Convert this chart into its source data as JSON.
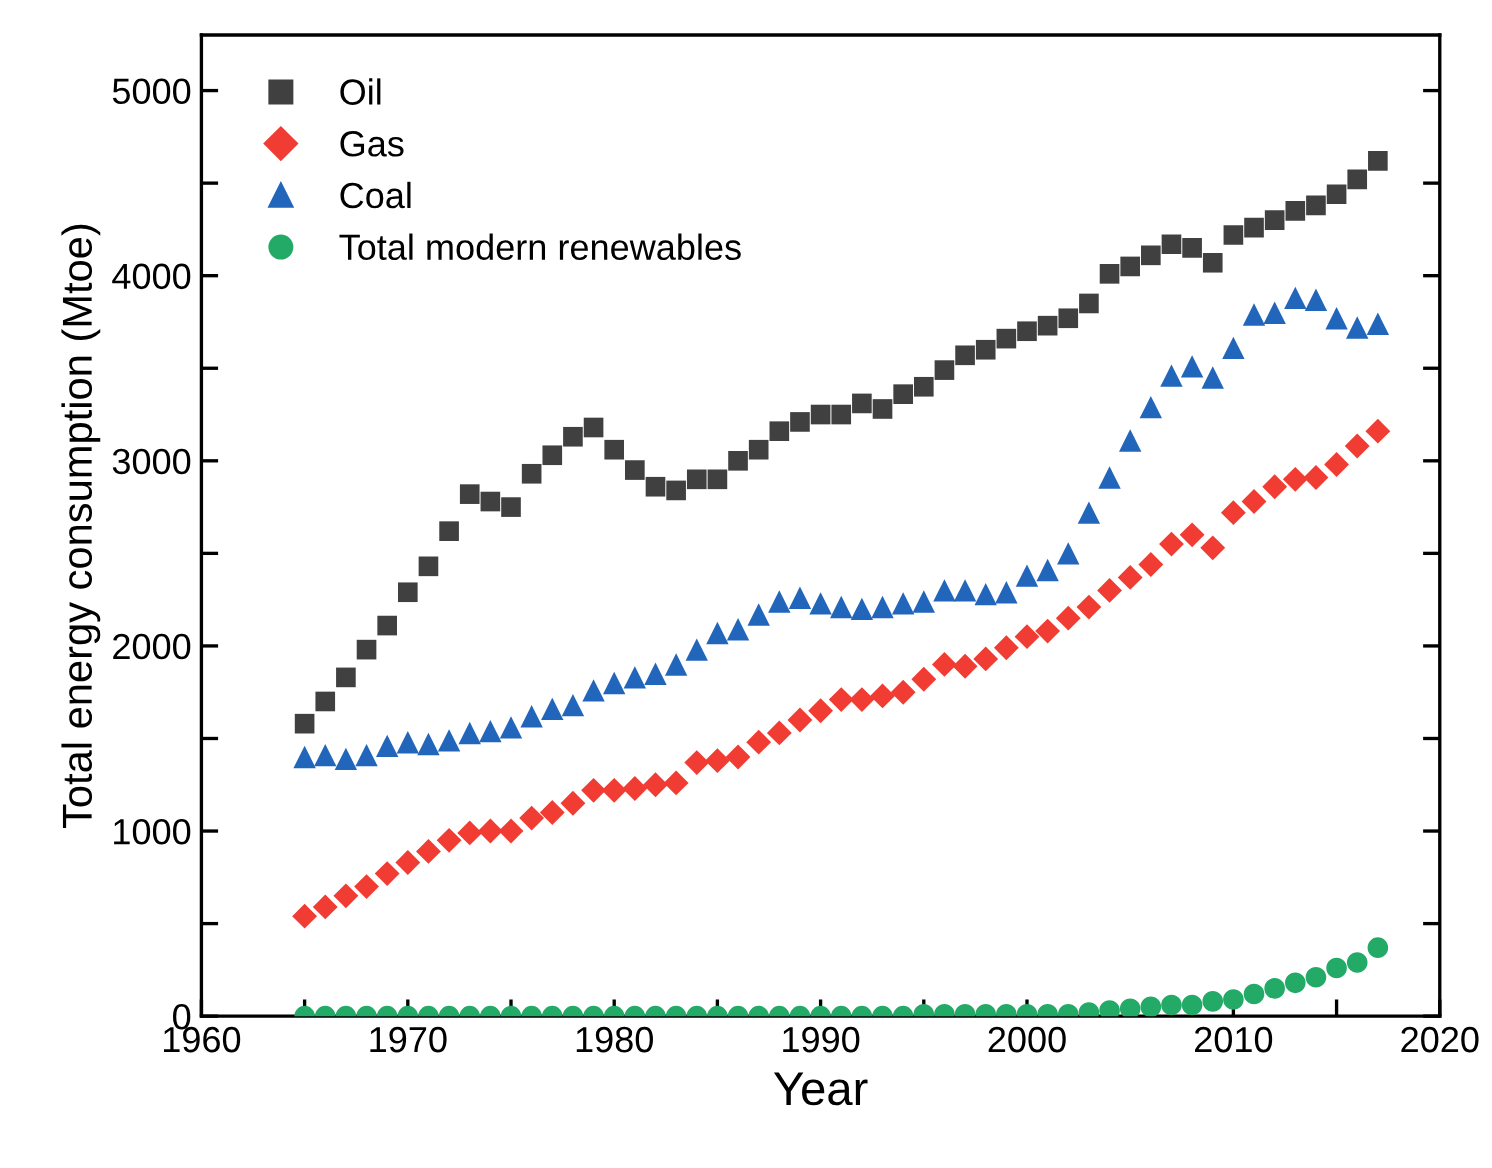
{
  "chart_data": {
    "type": "scatter",
    "xlabel": "Year",
    "ylabel": "Total energy consumption (Mtoe)",
    "x": [
      1965,
      1966,
      1967,
      1968,
      1969,
      1970,
      1971,
      1972,
      1973,
      1974,
      1975,
      1976,
      1977,
      1978,
      1979,
      1980,
      1981,
      1982,
      1983,
      1984,
      1985,
      1986,
      1987,
      1988,
      1989,
      1990,
      1991,
      1992,
      1993,
      1994,
      1995,
      1996,
      1997,
      1998,
      1999,
      2000,
      2001,
      2002,
      2003,
      2004,
      2005,
      2006,
      2007,
      2008,
      2009,
      2010,
      2011,
      2012,
      2013,
      2014,
      2015,
      2016,
      2017
    ],
    "series": [
      {
        "name": "Oil",
        "color": "#404040",
        "marker": "square",
        "values": [
          1580,
          1700,
          1830,
          1980,
          2110,
          2290,
          2430,
          2620,
          2820,
          2780,
          2750,
          2930,
          3030,
          3130,
          3180,
          3060,
          2950,
          2860,
          2840,
          2900,
          2900,
          3000,
          3060,
          3160,
          3210,
          3250,
          3250,
          3310,
          3280,
          3360,
          3400,
          3490,
          3570,
          3600,
          3660,
          3700,
          3730,
          3770,
          3850,
          4010,
          4050,
          4110,
          4170,
          4150,
          4070,
          4220,
          4260,
          4300,
          4350,
          4380,
          4440,
          4520,
          4620
        ]
      },
      {
        "name": "Gas",
        "color": "#f03c32",
        "marker": "diamond",
        "values": [
          540,
          590,
          650,
          700,
          770,
          830,
          890,
          950,
          990,
          1000,
          1000,
          1070,
          1100,
          1150,
          1220,
          1220,
          1230,
          1250,
          1260,
          1370,
          1380,
          1400,
          1480,
          1530,
          1600,
          1650,
          1710,
          1710,
          1730,
          1750,
          1820,
          1900,
          1890,
          1930,
          1990,
          2050,
          2080,
          2150,
          2210,
          2300,
          2370,
          2440,
          2550,
          2600,
          2530,
          2720,
          2780,
          2860,
          2900,
          2910,
          2980,
          3080,
          3160
        ]
      },
      {
        "name": "Coal",
        "color": "#2266bb",
        "marker": "triangle",
        "values": [
          1400,
          1410,
          1390,
          1410,
          1460,
          1480,
          1470,
          1490,
          1530,
          1540,
          1560,
          1620,
          1660,
          1680,
          1760,
          1800,
          1830,
          1850,
          1900,
          1980,
          2070,
          2090,
          2170,
          2240,
          2260,
          2230,
          2210,
          2200,
          2210,
          2230,
          2240,
          2300,
          2300,
          2280,
          2290,
          2380,
          2410,
          2500,
          2720,
          2910,
          3110,
          3290,
          3460,
          3510,
          3450,
          3610,
          3790,
          3800,
          3880,
          3870,
          3770,
          3720,
          3740
        ]
      },
      {
        "name": "Total modern renewables",
        "color": "#22aa66",
        "marker": "circle",
        "values": [
          0,
          0,
          0,
          0,
          0,
          0,
          0,
          0,
          0,
          0,
          0,
          0,
          0,
          0,
          0,
          0,
          0,
          0,
          0,
          0,
          0,
          0,
          0,
          0,
          0,
          0,
          0,
          0,
          0,
          0,
          10,
          10,
          10,
          10,
          10,
          10,
          10,
          10,
          20,
          30,
          40,
          50,
          60,
          60,
          80,
          90,
          120,
          150,
          180,
          210,
          260,
          290,
          370
        ]
      }
    ],
    "xlim": [
      1960,
      2020
    ],
    "xticks": [
      1960,
      {
        "value": 1965,
        "label": null
      },
      1970,
      {
        "value": 1975,
        "label": null
      },
      1980,
      {
        "value": 1985,
        "label": null
      },
      1990,
      {
        "value": 1995,
        "label": null
      },
      2000,
      {
        "value": 2005,
        "label": null
      },
      2010,
      {
        "value": 2015,
        "label": null
      },
      2020
    ],
    "ylim": [
      0,
      5300
    ],
    "yticks": [
      0,
      {
        "value": 500,
        "label": null
      },
      1000,
      {
        "value": 1500,
        "label": null
      },
      2000,
      {
        "value": 2500,
        "label": null
      },
      3000,
      {
        "value": 3500,
        "label": null
      },
      4000,
      {
        "value": 4500,
        "label": null
      },
      5000
    ],
    "grid": false,
    "legend": "top left"
  }
}
